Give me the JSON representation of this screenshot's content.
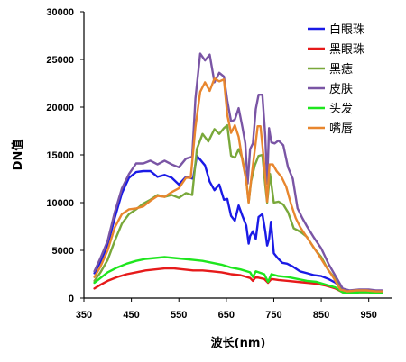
{
  "chart_data": {
    "type": "line",
    "xlabel": "波长(nm)",
    "ylabel": "DN值",
    "xlim": [
      350,
      1000
    ],
    "ylim": [
      0,
      30000
    ],
    "x_ticks": [
      350,
      450,
      550,
      650,
      750,
      850,
      950
    ],
    "y_ticks": [
      0,
      5000,
      10000,
      15000,
      20000,
      25000,
      30000
    ],
    "grid": false,
    "legend_position": "top-right",
    "series": [
      {
        "name": "白眼珠",
        "color": "#1a1ae6",
        "points": [
          [
            372,
            2600
          ],
          [
            385,
            3800
          ],
          [
            400,
            5600
          ],
          [
            415,
            8400
          ],
          [
            430,
            11000
          ],
          [
            445,
            12600
          ],
          [
            460,
            13200
          ],
          [
            475,
            13300
          ],
          [
            490,
            13300
          ],
          [
            505,
            12700
          ],
          [
            520,
            12900
          ],
          [
            535,
            12600
          ],
          [
            550,
            11900
          ],
          [
            565,
            12700
          ],
          [
            580,
            12500
          ],
          [
            588,
            14900
          ],
          [
            595,
            14500
          ],
          [
            605,
            13900
          ],
          [
            615,
            12200
          ],
          [
            625,
            11300
          ],
          [
            635,
            11900
          ],
          [
            645,
            10300
          ],
          [
            652,
            10400
          ],
          [
            660,
            8600
          ],
          [
            668,
            8100
          ],
          [
            676,
            9700
          ],
          [
            684,
            8600
          ],
          [
            692,
            7600
          ],
          [
            697,
            5700
          ],
          [
            700,
            6500
          ],
          [
            706,
            7000
          ],
          [
            712,
            6200
          ],
          [
            718,
            8500
          ],
          [
            726,
            8800
          ],
          [
            732,
            7000
          ],
          [
            736,
            5500
          ],
          [
            740,
            6200
          ],
          [
            744,
            8000
          ],
          [
            750,
            4700
          ],
          [
            758,
            4200
          ],
          [
            768,
            3700
          ],
          [
            778,
            3600
          ],
          [
            790,
            3300
          ],
          [
            805,
            2800
          ],
          [
            820,
            2600
          ],
          [
            835,
            2400
          ],
          [
            850,
            2300
          ],
          [
            865,
            2000
          ],
          [
            880,
            1600
          ],
          [
            895,
            900
          ],
          [
            910,
            700
          ],
          [
            930,
            800
          ],
          [
            950,
            800
          ],
          [
            965,
            700
          ],
          [
            978,
            700
          ]
        ]
      },
      {
        "name": "黑眼珠",
        "color": "#e61a1a",
        "points": [
          [
            372,
            1000
          ],
          [
            385,
            1400
          ],
          [
            400,
            1800
          ],
          [
            420,
            2200
          ],
          [
            440,
            2500
          ],
          [
            460,
            2700
          ],
          [
            480,
            2900
          ],
          [
            500,
            3000
          ],
          [
            520,
            3100
          ],
          [
            540,
            3100
          ],
          [
            560,
            3000
          ],
          [
            580,
            2900
          ],
          [
            600,
            2900
          ],
          [
            620,
            2800
          ],
          [
            640,
            2700
          ],
          [
            660,
            2500
          ],
          [
            680,
            2400
          ],
          [
            700,
            2100
          ],
          [
            706,
            1800
          ],
          [
            712,
            2200
          ],
          [
            730,
            2000
          ],
          [
            738,
            1600
          ],
          [
            745,
            2000
          ],
          [
            760,
            1900
          ],
          [
            780,
            1800
          ],
          [
            800,
            1700
          ],
          [
            820,
            1600
          ],
          [
            840,
            1500
          ],
          [
            860,
            1300
          ],
          [
            880,
            1000
          ],
          [
            895,
            600
          ],
          [
            910,
            500
          ],
          [
            930,
            600
          ],
          [
            950,
            600
          ],
          [
            965,
            500
          ],
          [
            978,
            500
          ]
        ]
      },
      {
        "name": "黑痣",
        "color": "#79a83a",
        "points": [
          [
            372,
            1800
          ],
          [
            385,
            2700
          ],
          [
            400,
            4000
          ],
          [
            415,
            6000
          ],
          [
            430,
            7800
          ],
          [
            445,
            8800
          ],
          [
            460,
            9300
          ],
          [
            475,
            9900
          ],
          [
            490,
            10300
          ],
          [
            505,
            10800
          ],
          [
            520,
            10600
          ],
          [
            535,
            10800
          ],
          [
            550,
            10500
          ],
          [
            565,
            11000
          ],
          [
            578,
            10800
          ],
          [
            588,
            15600
          ],
          [
            600,
            17200
          ],
          [
            612,
            16400
          ],
          [
            625,
            17700
          ],
          [
            635,
            17200
          ],
          [
            645,
            17800
          ],
          [
            652,
            18100
          ],
          [
            660,
            14900
          ],
          [
            668,
            14700
          ],
          [
            676,
            15600
          ],
          [
            684,
            14600
          ],
          [
            692,
            12400
          ],
          [
            697,
            10000
          ],
          [
            702,
            12200
          ],
          [
            710,
            13900
          ],
          [
            718,
            14900
          ],
          [
            726,
            15000
          ],
          [
            732,
            11800
          ],
          [
            736,
            10000
          ],
          [
            742,
            13000
          ],
          [
            750,
            10000
          ],
          [
            760,
            10100
          ],
          [
            770,
            9800
          ],
          [
            780,
            9000
          ],
          [
            792,
            7300
          ],
          [
            800,
            7100
          ],
          [
            810,
            6800
          ],
          [
            820,
            6400
          ],
          [
            835,
            5200
          ],
          [
            850,
            4300
          ],
          [
            865,
            2900
          ],
          [
            880,
            2000
          ],
          [
            895,
            900
          ],
          [
            910,
            700
          ],
          [
            930,
            800
          ],
          [
            950,
            800
          ],
          [
            965,
            700
          ],
          [
            978,
            700
          ]
        ]
      },
      {
        "name": "皮肤",
        "color": "#7a55a5",
        "points": [
          [
            372,
            2800
          ],
          [
            385,
            4200
          ],
          [
            400,
            6000
          ],
          [
            415,
            9000
          ],
          [
            430,
            11500
          ],
          [
            445,
            13000
          ],
          [
            460,
            14100
          ],
          [
            475,
            14100
          ],
          [
            490,
            14400
          ],
          [
            505,
            14000
          ],
          [
            520,
            14400
          ],
          [
            535,
            14000
          ],
          [
            550,
            13700
          ],
          [
            565,
            14600
          ],
          [
            578,
            14800
          ],
          [
            585,
            20900
          ],
          [
            595,
            25600
          ],
          [
            605,
            24900
          ],
          [
            615,
            25500
          ],
          [
            625,
            22600
          ],
          [
            635,
            23600
          ],
          [
            645,
            23200
          ],
          [
            652,
            20700
          ],
          [
            660,
            18500
          ],
          [
            668,
            18700
          ],
          [
            676,
            19900
          ],
          [
            684,
            17900
          ],
          [
            690,
            16200
          ],
          [
            695,
            12000
          ],
          [
            700,
            15600
          ],
          [
            706,
            16200
          ],
          [
            712,
            19800
          ],
          [
            718,
            21300
          ],
          [
            726,
            21300
          ],
          [
            732,
            17000
          ],
          [
            736,
            12000
          ],
          [
            740,
            17800
          ],
          [
            745,
            16300
          ],
          [
            752,
            16200
          ],
          [
            760,
            16500
          ],
          [
            770,
            16000
          ],
          [
            780,
            13700
          ],
          [
            790,
            12500
          ],
          [
            800,
            9400
          ],
          [
            810,
            8400
          ],
          [
            820,
            7500
          ],
          [
            835,
            6300
          ],
          [
            850,
            5200
          ],
          [
            865,
            3600
          ],
          [
            880,
            2300
          ],
          [
            895,
            1000
          ],
          [
            910,
            800
          ],
          [
            930,
            900
          ],
          [
            950,
            900
          ],
          [
            965,
            800
          ],
          [
            978,
            800
          ]
        ]
      },
      {
        "name": "头发",
        "color": "#1ee61e",
        "points": [
          [
            372,
            1600
          ],
          [
            385,
            2100
          ],
          [
            400,
            2700
          ],
          [
            420,
            3200
          ],
          [
            440,
            3600
          ],
          [
            460,
            3900
          ],
          [
            480,
            4100
          ],
          [
            500,
            4200
          ],
          [
            520,
            4300
          ],
          [
            540,
            4200
          ],
          [
            560,
            4100
          ],
          [
            580,
            4000
          ],
          [
            600,
            3900
          ],
          [
            620,
            3700
          ],
          [
            640,
            3500
          ],
          [
            660,
            3200
          ],
          [
            680,
            3000
          ],
          [
            700,
            2700
          ],
          [
            706,
            2200
          ],
          [
            712,
            2800
          ],
          [
            730,
            2500
          ],
          [
            738,
            1700
          ],
          [
            745,
            2500
          ],
          [
            760,
            2300
          ],
          [
            780,
            2200
          ],
          [
            800,
            2000
          ],
          [
            820,
            1800
          ],
          [
            840,
            1700
          ],
          [
            860,
            1400
          ],
          [
            880,
            1100
          ],
          [
            895,
            600
          ],
          [
            910,
            500
          ],
          [
            930,
            600
          ],
          [
            950,
            600
          ],
          [
            965,
            500
          ],
          [
            978,
            500
          ]
        ]
      },
      {
        "name": "嘴唇",
        "color": "#e8862e",
        "points": [
          [
            372,
            2200
          ],
          [
            385,
            3300
          ],
          [
            400,
            5000
          ],
          [
            415,
            7400
          ],
          [
            430,
            8800
          ],
          [
            445,
            9300
          ],
          [
            460,
            9400
          ],
          [
            475,
            9600
          ],
          [
            490,
            10200
          ],
          [
            505,
            10700
          ],
          [
            520,
            10600
          ],
          [
            535,
            11100
          ],
          [
            550,
            11500
          ],
          [
            565,
            12600
          ],
          [
            575,
            12600
          ],
          [
            585,
            17900
          ],
          [
            595,
            21600
          ],
          [
            605,
            22600
          ],
          [
            615,
            21700
          ],
          [
            625,
            23000
          ],
          [
            635,
            22700
          ],
          [
            645,
            22900
          ],
          [
            652,
            19200
          ],
          [
            660,
            17300
          ],
          [
            668,
            18100
          ],
          [
            676,
            16900
          ],
          [
            684,
            14400
          ],
          [
            692,
            12300
          ],
          [
            697,
            10000
          ],
          [
            703,
            12700
          ],
          [
            710,
            15500
          ],
          [
            716,
            18000
          ],
          [
            722,
            18000
          ],
          [
            730,
            14000
          ],
          [
            736,
            10100
          ],
          [
            741,
            14000
          ],
          [
            748,
            14000
          ],
          [
            756,
            13300
          ],
          [
            766,
            12700
          ],
          [
            776,
            11700
          ],
          [
            786,
            9900
          ],
          [
            796,
            8400
          ],
          [
            806,
            7400
          ],
          [
            818,
            6500
          ],
          [
            830,
            5600
          ],
          [
            845,
            4500
          ],
          [
            860,
            3300
          ],
          [
            875,
            2200
          ],
          [
            890,
            900
          ],
          [
            905,
            700
          ],
          [
            925,
            800
          ],
          [
            945,
            800
          ],
          [
            965,
            700
          ],
          [
            978,
            700
          ]
        ]
      }
    ]
  }
}
